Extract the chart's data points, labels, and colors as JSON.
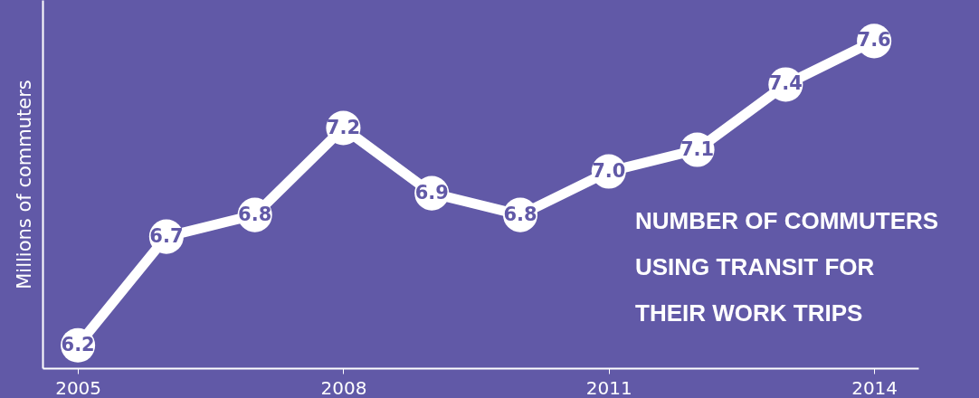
{
  "chart_data": {
    "type": "line",
    "title": "NUMBER OF COMMUTERS\nUSING TRANSIT FOR\nTHEIR WORK TRIPS",
    "ylabel": "Millions of commuters",
    "x": [
      2005,
      2006,
      2007,
      2008,
      2009,
      2010,
      2011,
      2012,
      2013,
      2014
    ],
    "values": [
      6.2,
      6.7,
      6.8,
      7.2,
      6.9,
      6.8,
      7.0,
      7.1,
      7.4,
      7.6
    ],
    "value_labels": [
      "6.2",
      "6.7",
      "6.8",
      "7.2",
      "6.9",
      "6.8",
      "7.0",
      "7.1",
      "7.4",
      "7.6"
    ],
    "color": "#ffffff",
    "marker": "circle",
    "xlim": [
      2004.6,
      2014.5
    ],
    "xticks": [
      2005,
      2008,
      2011,
      2014
    ]
  }
}
